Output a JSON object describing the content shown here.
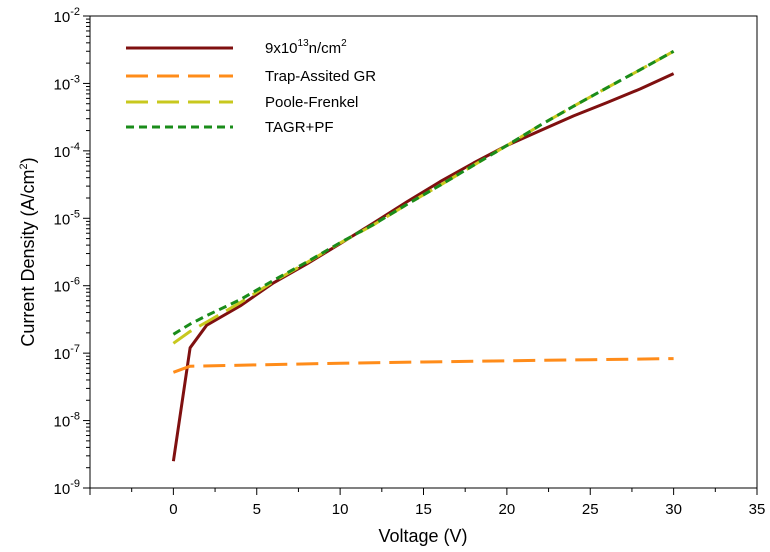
{
  "chart_data": {
    "type": "line",
    "xlabel": "Voltage (V)",
    "ylabel": "Current Density (A/cm²)",
    "ylabel_base": "Current Density (A/cm",
    "ylabel_sup": "2",
    "ylabel_tail": ")",
    "xlim": [
      -5,
      35
    ],
    "ylim": [
      1e-09,
      0.01
    ],
    "yscale": "log",
    "xticks": [
      0,
      5,
      10,
      15,
      20,
      25,
      30,
      35
    ],
    "yticks": [
      {
        "base": "10",
        "exp": "-9",
        "value": 1e-09
      },
      {
        "base": "10",
        "exp": "-8",
        "value": 1e-08
      },
      {
        "base": "10",
        "exp": "-7",
        "value": 1e-07
      },
      {
        "base": "10",
        "exp": "-6",
        "value": 1e-06
      },
      {
        "base": "10",
        "exp": "-5",
        "value": 1e-05
      },
      {
        "base": "10",
        "exp": "-4",
        "value": 0.0001
      },
      {
        "base": "10",
        "exp": "-3",
        "value": 0.001
      },
      {
        "base": "10",
        "exp": "-2",
        "value": 0.01
      }
    ],
    "grid": false,
    "legend": "top-left",
    "series": [
      {
        "name": "9x10¹³n/cm²",
        "label_parts": [
          "9x10",
          "13",
          "n/cm",
          "2"
        ],
        "color": "#7f1010",
        "dash": "solid",
        "x": [
          0,
          1,
          2,
          4,
          6,
          8,
          10,
          12,
          14,
          16,
          18,
          20,
          22,
          24,
          26,
          28,
          30
        ],
        "y": [
          2.5e-09,
          1.2e-07,
          2.6e-07,
          5e-07,
          1.1e-06,
          2.1e-06,
          4.2e-06,
          8.5e-06,
          1.75e-05,
          3.5e-05,
          6.6e-05,
          0.00012,
          0.0002,
          0.00033,
          0.00052,
          0.00083,
          0.0014
        ]
      },
      {
        "name": "Trap-Assited GR",
        "label_parts": [
          "Trap-Assited GR"
        ],
        "color": "#ff8c1a",
        "dash": "long",
        "x": [
          0,
          1,
          5,
          10,
          15,
          20,
          25,
          30
        ],
        "y": [
          5.2e-08,
          6.4e-08,
          6.7e-08,
          7.1e-08,
          7.4e-08,
          7.7e-08,
          8e-08,
          8.3e-08
        ]
      },
      {
        "name": "Poole-Frenkel",
        "label_parts": [
          "Poole-Frenkel"
        ],
        "color": "#c8c81e",
        "dash": "long",
        "x": [
          0,
          1,
          2,
          4,
          6,
          8,
          10,
          12,
          14,
          16,
          18,
          20,
          22,
          24,
          26,
          28,
          30
        ],
        "y": [
          1.4e-07,
          2.1e-07,
          2.9e-07,
          5.6e-07,
          1.15e-06,
          2.2e-06,
          4.3e-06,
          8e-06,
          1.6e-05,
          3.1e-05,
          6.1e-05,
          0.00012,
          0.00024,
          0.00046,
          0.00086,
          0.0016,
          0.003
        ]
      },
      {
        "name": "TAGR+PF",
        "label_parts": [
          "TAGR+PF"
        ],
        "color": "#1a8c1a",
        "dash": "short",
        "x": [
          0,
          1,
          2,
          4,
          6,
          8,
          10,
          12,
          14,
          16,
          18,
          20,
          22,
          24,
          26,
          28,
          30
        ],
        "y": [
          1.9e-07,
          2.7e-07,
          3.6e-07,
          6.2e-07,
          1.2e-06,
          2.25e-06,
          4.35e-06,
          8.1e-06,
          1.6e-05,
          3.1e-05,
          6.1e-05,
          0.00012,
          0.00024,
          0.00046,
          0.00086,
          0.0016,
          0.003
        ]
      }
    ]
  }
}
